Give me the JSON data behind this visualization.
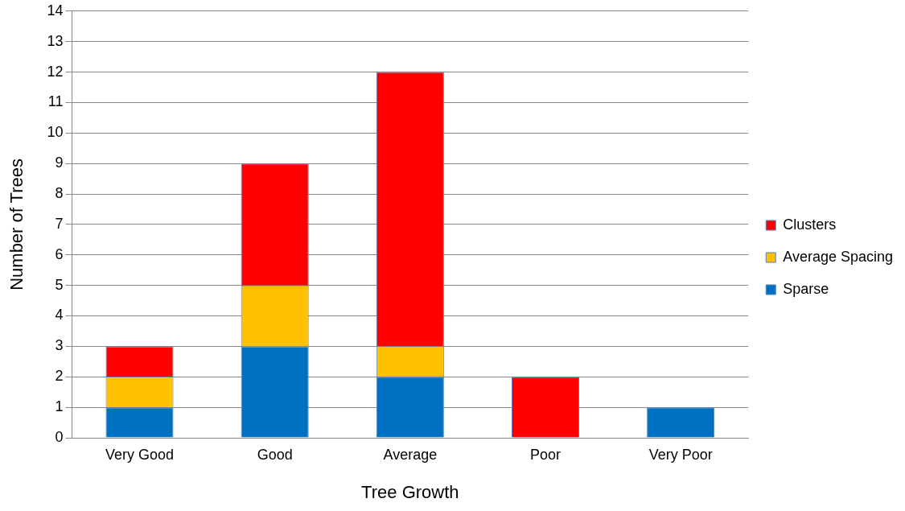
{
  "chart_data": {
    "type": "bar",
    "stacked": true,
    "xlabel": "Tree Growth",
    "ylabel": "Number of Trees",
    "categories": [
      "Very Good",
      "Good",
      "Average",
      "Poor",
      "Very Poor"
    ],
    "series": [
      {
        "name": "Sparse",
        "color": "#0070c0",
        "values": [
          1,
          3,
          2,
          0,
          1
        ]
      },
      {
        "name": "Average Spacing",
        "color": "#ffc000",
        "values": [
          1,
          2,
          1,
          0,
          0
        ]
      },
      {
        "name": "Clusters",
        "color": "#ff0000",
        "values": [
          1,
          4,
          9,
          2,
          0
        ]
      }
    ],
    "ylim": [
      0,
      14
    ],
    "yticks": [
      0,
      1,
      2,
      3,
      4,
      5,
      6,
      7,
      8,
      9,
      10,
      11,
      12,
      13,
      14
    ],
    "grid": "y",
    "legend": "right"
  }
}
